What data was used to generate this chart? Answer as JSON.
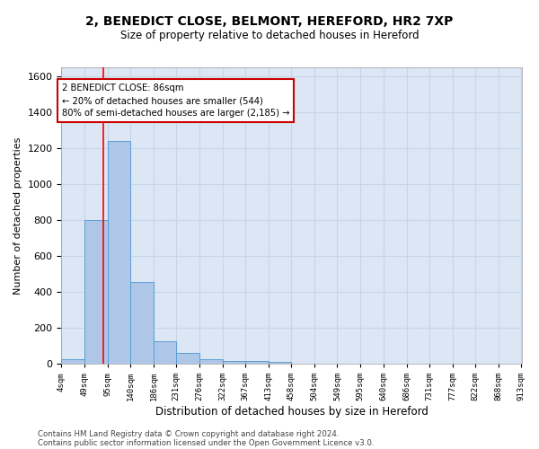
{
  "title_line1": "2, BENEDICT CLOSE, BELMONT, HEREFORD, HR2 7XP",
  "title_line2": "Size of property relative to detached houses in Hereford",
  "xlabel": "Distribution of detached houses by size in Hereford",
  "ylabel": "Number of detached properties",
  "footer_line1": "Contains HM Land Registry data © Crown copyright and database right 2024.",
  "footer_line2": "Contains public sector information licensed under the Open Government Licence v3.0.",
  "bar_edges": [
    4,
    49,
    95,
    140,
    186,
    231,
    276,
    322,
    367,
    413,
    458,
    504,
    549,
    595,
    640,
    686,
    731,
    777,
    822,
    868,
    913
  ],
  "bar_heights": [
    25,
    800,
    1240,
    455,
    125,
    60,
    28,
    18,
    14,
    10,
    0,
    0,
    0,
    0,
    0,
    0,
    0,
    0,
    0,
    0
  ],
  "bar_color": "#aec6e8",
  "bar_edgecolor": "#5a9fd4",
  "grid_color": "#c8d4e8",
  "bg_color": "#dce6f5",
  "red_line_x": 86,
  "annotation_text": "2 BENEDICT CLOSE: 86sqm\n← 20% of detached houses are smaller (544)\n80% of semi-detached houses are larger (2,185) →",
  "annotation_box_color": "#cc0000",
  "ylim": [
    0,
    1650
  ],
  "yticks": [
    0,
    200,
    400,
    600,
    800,
    1000,
    1200,
    1400,
    1600
  ],
  "tick_labels": [
    "4sqm",
    "49sqm",
    "95sqm",
    "140sqm",
    "186sqm",
    "231sqm",
    "276sqm",
    "322sqm",
    "367sqm",
    "413sqm",
    "458sqm",
    "504sqm",
    "549sqm",
    "595sqm",
    "640sqm",
    "686sqm",
    "731sqm",
    "777sqm",
    "822sqm",
    "868sqm",
    "913sqm"
  ],
  "fig_width": 6.0,
  "fig_height": 5.0,
  "dpi": 100
}
